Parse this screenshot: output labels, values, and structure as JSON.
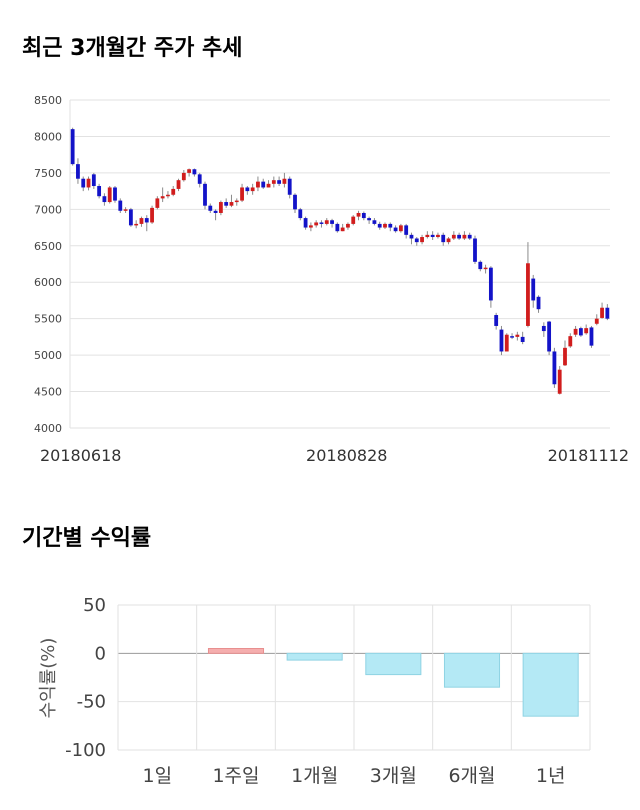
{
  "page": {
    "title_price": "최근 3개월간 주가 추세",
    "title_returns": "기간별 수익률"
  },
  "colors": {
    "up": "#d11d1d",
    "down": "#1313c8",
    "wick": "#8a8a8a",
    "grid": "#e2e2e2",
    "bar_positive_fill": "#f5aeae",
    "bar_positive_stroke": "#e88f8f",
    "bar_negative_fill": "#b4e9f5",
    "bar_negative_stroke": "#8fd3e3"
  },
  "chart_data": [
    {
      "type": "candlestick",
      "title": "최근 3개월간 주가 추세",
      "ylim": [
        4000,
        8500
      ],
      "y_ticks": [
        8500,
        8000,
        7500,
        7000,
        6500,
        6000,
        5500,
        5000,
        4500,
        4000
      ],
      "x_tick_labels": [
        {
          "index": 0,
          "label": "20180618"
        },
        {
          "index": 48,
          "label": "20180828"
        },
        {
          "index": 96,
          "label": "20181112"
        }
      ],
      "grid": true,
      "candles": [
        [
          8100,
          7620,
          8120,
          7600
        ],
        [
          7620,
          7420,
          7700,
          7350
        ],
        [
          7420,
          7300,
          7450,
          7250
        ],
        [
          7300,
          7420,
          7450,
          7260
        ],
        [
          7480,
          7320,
          7500,
          7280
        ],
        [
          7320,
          7180,
          7350,
          7150
        ],
        [
          7180,
          7100,
          7220,
          7050
        ],
        [
          7100,
          7300,
          7320,
          7080
        ],
        [
          7300,
          7120,
          7320,
          7090
        ],
        [
          7120,
          6980,
          7150,
          6950
        ],
        [
          6980,
          7000,
          7030,
          6950
        ],
        [
          7000,
          6780,
          7020,
          6760
        ],
        [
          6780,
          6800,
          6850,
          6740
        ],
        [
          6800,
          6880,
          6900,
          6760
        ],
        [
          6880,
          6820,
          6920,
          6700
        ],
        [
          6820,
          7020,
          7050,
          6800
        ],
        [
          7020,
          7150,
          7180,
          7000
        ],
        [
          7150,
          7180,
          7300,
          7100
        ],
        [
          7180,
          7200,
          7250,
          7150
        ],
        [
          7200,
          7280,
          7320,
          7180
        ],
        [
          7280,
          7400,
          7420,
          7250
        ],
        [
          7400,
          7500,
          7540,
          7380
        ],
        [
          7500,
          7550,
          7560,
          7450
        ],
        [
          7550,
          7480,
          7560,
          7450
        ],
        [
          7480,
          7350,
          7500,
          7300
        ],
        [
          7350,
          7050,
          7380,
          7000
        ],
        [
          7050,
          6980,
          7080,
          6950
        ],
        [
          6980,
          6950,
          7000,
          6850
        ],
        [
          6950,
          7100,
          7120,
          6920
        ],
        [
          7100,
          7050,
          7150,
          7020
        ],
        [
          7050,
          7100,
          7200,
          7030
        ],
        [
          7100,
          7120,
          7150,
          7050
        ],
        [
          7120,
          7300,
          7350,
          7100
        ],
        [
          7300,
          7250,
          7320,
          7200
        ],
        [
          7250,
          7300,
          7350,
          7200
        ],
        [
          7300,
          7380,
          7450,
          7250
        ],
        [
          7380,
          7300,
          7420,
          7280
        ],
        [
          7300,
          7350,
          7400,
          7300
        ],
        [
          7350,
          7400,
          7450,
          7300
        ],
        [
          7400,
          7350,
          7450,
          7320
        ],
        [
          7350,
          7420,
          7500,
          7300
        ],
        [
          7420,
          7200,
          7450,
          7150
        ],
        [
          7200,
          7000,
          7220,
          6950
        ],
        [
          7000,
          6880,
          7020,
          6850
        ],
        [
          6880,
          6750,
          6900,
          6720
        ],
        [
          6750,
          6780,
          6820,
          6700
        ],
        [
          6780,
          6820,
          6850,
          6750
        ],
        [
          6820,
          6800,
          6850,
          6750
        ],
        [
          6800,
          6850,
          6880,
          6780
        ],
        [
          6850,
          6800,
          6870,
          6750
        ],
        [
          6800,
          6700,
          6820,
          6680
        ],
        [
          6700,
          6750,
          6800,
          6700
        ],
        [
          6750,
          6800,
          6820,
          6720
        ],
        [
          6800,
          6900,
          6920,
          6780
        ],
        [
          6900,
          6950,
          6980,
          6850
        ],
        [
          6950,
          6880,
          6970,
          6850
        ],
        [
          6880,
          6850,
          6900,
          6800
        ],
        [
          6850,
          6800,
          6880,
          6780
        ],
        [
          6800,
          6750,
          6830,
          6720
        ],
        [
          6750,
          6800,
          6820,
          6730
        ],
        [
          6800,
          6750,
          6820,
          6700
        ],
        [
          6750,
          6700,
          6780,
          6680
        ],
        [
          6700,
          6780,
          6800,
          6680
        ],
        [
          6780,
          6650,
          6800,
          6600
        ],
        [
          6650,
          6600,
          6680,
          6520
        ],
        [
          6600,
          6550,
          6620,
          6500
        ],
        [
          6550,
          6620,
          6650,
          6520
        ],
        [
          6620,
          6650,
          6700,
          6600
        ],
        [
          6650,
          6620,
          6700,
          6580
        ],
        [
          6620,
          6650,
          6680,
          6600
        ],
        [
          6650,
          6550,
          6680,
          6500
        ],
        [
          6550,
          6600,
          6620,
          6520
        ],
        [
          6600,
          6650,
          6700,
          6580
        ],
        [
          6650,
          6600,
          6680,
          6580
        ],
        [
          6600,
          6650,
          6700,
          6580
        ],
        [
          6650,
          6600,
          6680,
          6580
        ],
        [
          6600,
          6280,
          6640,
          6250
        ],
        [
          6280,
          6180,
          6300,
          6150
        ],
        [
          6180,
          6200,
          6240,
          6120
        ],
        [
          6200,
          5750,
          6220,
          5650
        ],
        [
          5550,
          5400,
          5580,
          5350
        ],
        [
          5350,
          5050,
          5400,
          5000
        ],
        [
          5050,
          5280,
          5300,
          5050
        ],
        [
          5260,
          5250,
          5300,
          5220
        ],
        [
          5250,
          5280,
          5320,
          5200
        ],
        [
          5250,
          5180,
          5320,
          5150
        ],
        [
          5400,
          6260,
          6550,
          5380
        ],
        [
          6050,
          5750,
          6100,
          5650
        ],
        [
          5800,
          5630,
          5820,
          5580
        ],
        [
          5400,
          5330,
          5450,
          5250
        ],
        [
          5460,
          5050,
          5470,
          5000
        ],
        [
          5050,
          4600,
          5100,
          4550
        ],
        [
          4470,
          4800,
          4850,
          4460
        ],
        [
          4860,
          5100,
          5200,
          4850
        ],
        [
          5120,
          5260,
          5300,
          5100
        ],
        [
          5280,
          5360,
          5400,
          5250
        ],
        [
          5370,
          5270,
          5390,
          5250
        ],
        [
          5300,
          5370,
          5420,
          5280
        ],
        [
          5380,
          5130,
          5400,
          5100
        ],
        [
          5430,
          5500,
          5560,
          5410
        ],
        [
          5510,
          5650,
          5720,
          5500
        ],
        [
          5650,
          5500,
          5700,
          5480
        ]
      ]
    },
    {
      "type": "bar",
      "title": "기간별 수익률",
      "ylabel": "수익률(%)",
      "ylim": [
        -100,
        50
      ],
      "y_ticks": [
        50,
        0,
        -50,
        -100
      ],
      "grid": true,
      "categories": [
        "1일",
        "1주일",
        "1개월",
        "3개월",
        "6개월",
        "1년"
      ],
      "values": [
        0,
        5,
        -7,
        -22,
        -35,
        -65
      ]
    }
  ]
}
